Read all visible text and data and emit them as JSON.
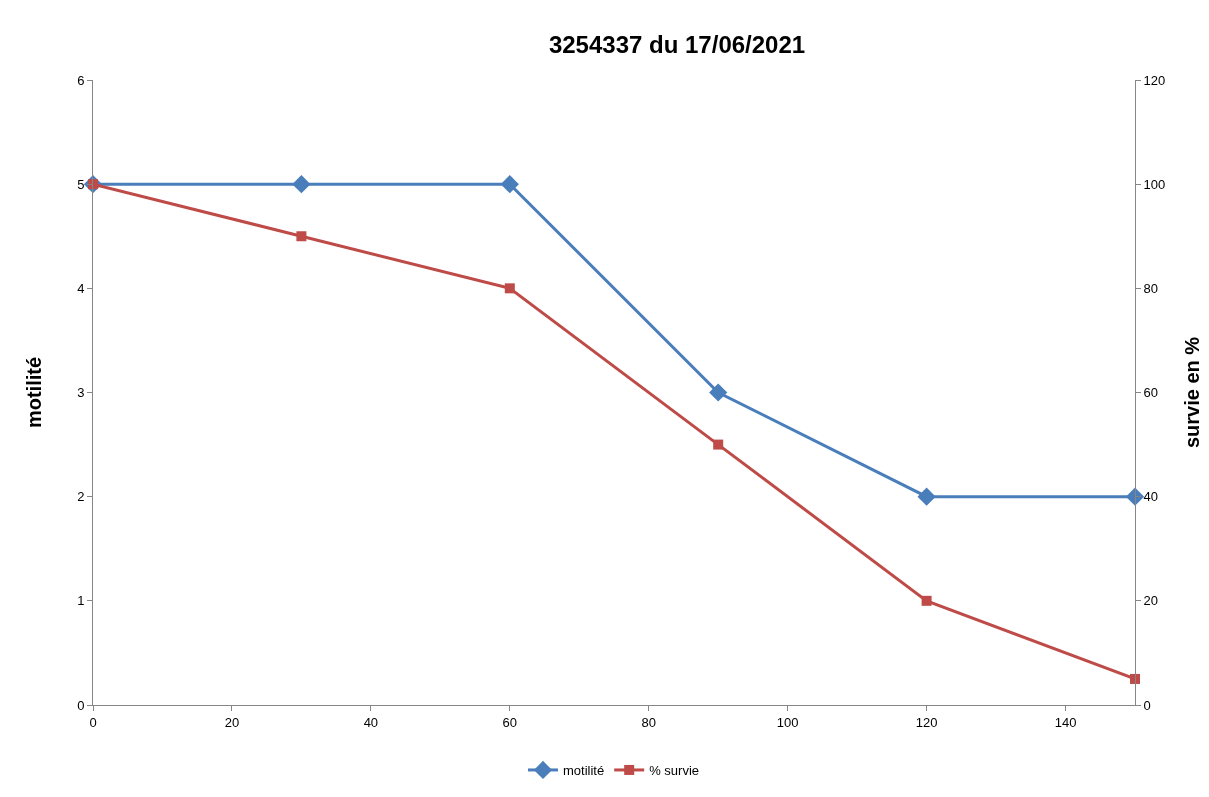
{
  "chart_data": {
    "type": "line",
    "title": "3254337 du 17/06/2021",
    "ylabel": "motilité",
    "y2label": "survie en %",
    "x": [
      0,
      30,
      60,
      90,
      120,
      150
    ],
    "series": [
      {
        "name": "motilité",
        "color": "#4a7ebb",
        "marker": "diamond",
        "values": [
          5,
          5,
          5,
          3,
          2,
          2
        ]
      },
      {
        "name": "% survie",
        "color": "#be4b48",
        "marker": "square",
        "axis": "y2",
        "values": [
          100,
          90,
          80,
          50,
          20,
          5
        ]
      }
    ],
    "xlim": [
      0,
      150
    ],
    "xticks": [
      0,
      20,
      40,
      60,
      80,
      100,
      120,
      140
    ],
    "ylim": [
      0,
      6
    ],
    "yticks": [
      0,
      1,
      2,
      3,
      4,
      5,
      6
    ],
    "y2lim": [
      0,
      120
    ],
    "y2ticks": [
      0,
      20,
      40,
      60,
      80,
      100,
      120
    ],
    "grid": false,
    "legend": "bottom",
    "line_style": "solid"
  }
}
